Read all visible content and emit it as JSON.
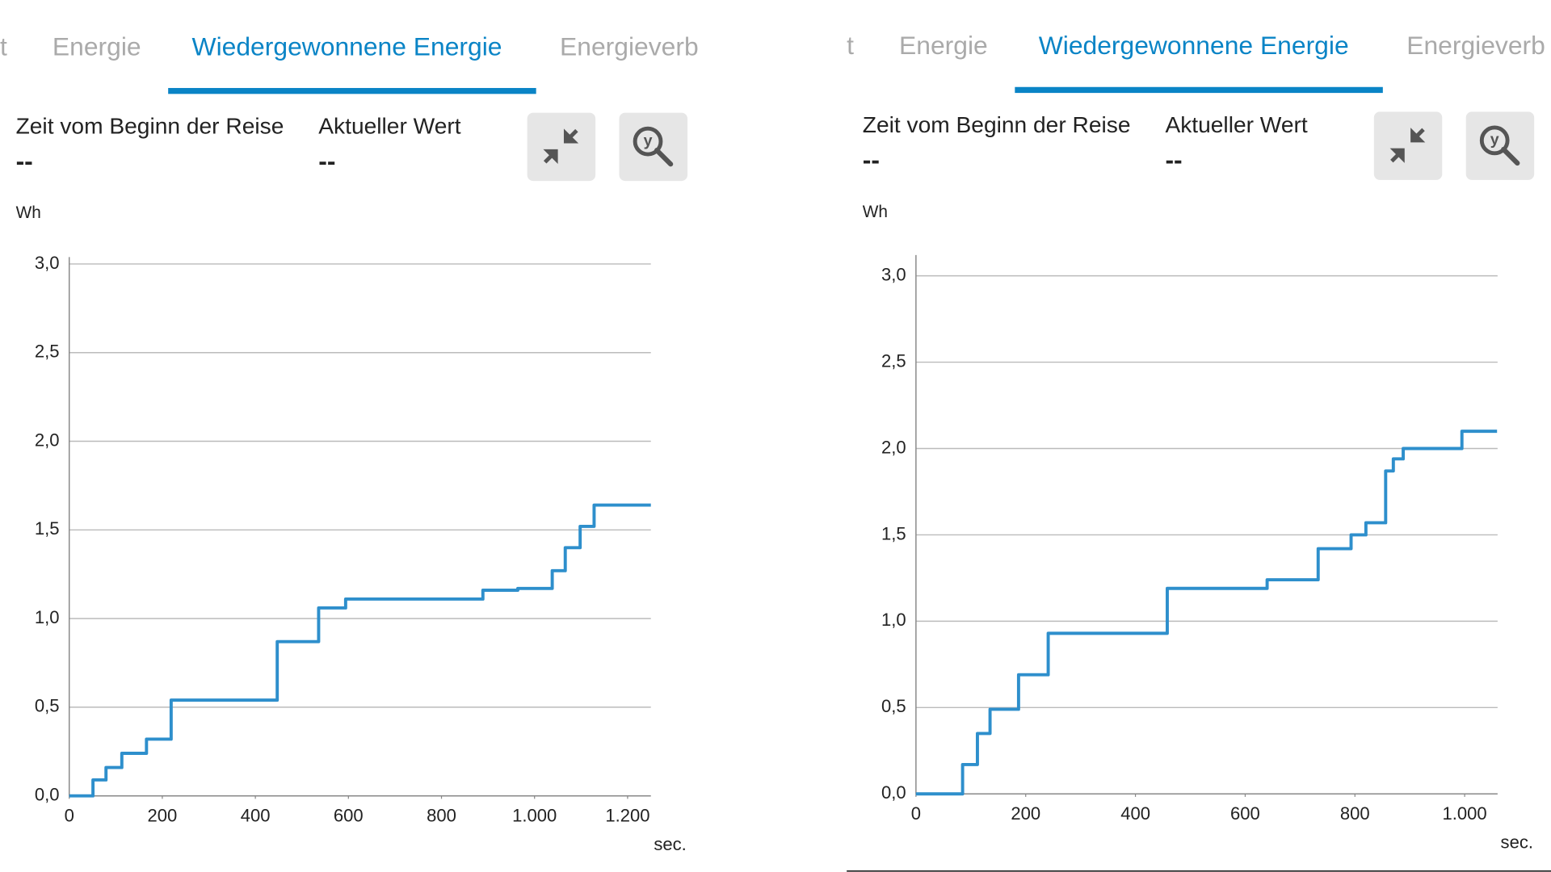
{
  "panels": [
    {
      "tabs": [
        "t",
        "Energie",
        "Wiedergewonnene Energie",
        "Energieverb"
      ],
      "time_label": "Zeit vom Beginn der Reise",
      "time_value": "--",
      "current_label": "Aktueller Wert",
      "current_value": "--",
      "zoom_icon": "y"
    },
    {
      "tabs": [
        "t",
        "Energie",
        "Wiedergewonnene Energie",
        "Energieverb"
      ],
      "time_label": "Zeit vom Beginn der Reise",
      "time_value": "--",
      "current_label": "Aktueller Wert",
      "current_value": "--",
      "zoom_icon": "y"
    }
  ],
  "chart_data": [
    {
      "type": "line",
      "y_label": "Wh",
      "x_label": "sec.",
      "color": "#2e8fcc",
      "grid": true,
      "x": [
        0,
        51,
        51,
        79,
        79,
        113,
        113,
        166,
        166,
        219,
        219,
        447,
        447,
        536,
        536,
        594,
        594,
        889,
        889,
        964,
        964,
        1038,
        1038,
        1066,
        1066,
        1098,
        1098,
        1128,
        1128,
        1250
      ],
      "values": [
        0,
        0,
        0.09,
        0.09,
        0.16,
        0.16,
        0.24,
        0.24,
        0.32,
        0.32,
        0.54,
        0.54,
        0.87,
        0.87,
        1.06,
        1.06,
        1.11,
        1.11,
        1.16,
        1.16,
        1.17,
        1.17,
        1.27,
        1.27,
        1.4,
        1.4,
        1.52,
        1.52,
        1.64,
        1.64
      ],
      "xlim": [
        0,
        1250
      ],
      "ylim": [
        0,
        3
      ],
      "xticks": [
        0,
        200,
        400,
        600,
        800,
        {
          "value": 1000,
          "label": "1.000"
        },
        {
          "value": 1200,
          "label": "1.200"
        }
      ],
      "yticks": [
        {
          "value": 0,
          "label": "0,0"
        },
        {
          "value": 0.5,
          "label": "0,5"
        },
        {
          "value": 1,
          "label": "1,0"
        },
        {
          "value": 1.5,
          "label": "1,5"
        },
        {
          "value": 2,
          "label": "2,0"
        },
        {
          "value": 2.5,
          "label": "2,5"
        },
        {
          "value": 3,
          "label": "3,0"
        }
      ]
    },
    {
      "type": "line",
      "y_label": "Wh",
      "x_label": "sec.",
      "color": "#2e8fcc",
      "grid": true,
      "x": [
        0,
        85,
        85,
        112,
        112,
        135,
        135,
        187,
        187,
        241,
        241,
        458,
        458,
        640,
        640,
        733,
        733,
        793,
        793,
        820,
        820,
        856,
        856,
        870,
        870,
        888,
        888,
        995,
        995,
        1059
      ],
      "values": [
        0,
        0,
        0.17,
        0.17,
        0.35,
        0.35,
        0.49,
        0.49,
        0.69,
        0.69,
        0.93,
        0.93,
        1.19,
        1.19,
        1.24,
        1.24,
        1.42,
        1.42,
        1.5,
        1.5,
        1.57,
        1.57,
        1.87,
        1.87,
        1.94,
        1.94,
        2.0,
        2.0,
        2.1,
        2.1
      ],
      "xlim": [
        0,
        1060
      ],
      "ylim": [
        0,
        3.1
      ],
      "xticks": [
        0,
        200,
        400,
        600,
        800,
        {
          "value": 1000,
          "label": "1.000"
        }
      ],
      "yticks": [
        {
          "value": 0,
          "label": "0,0"
        },
        {
          "value": 0.5,
          "label": "0,5"
        },
        {
          "value": 1,
          "label": "1,0"
        },
        {
          "value": 1.5,
          "label": "1,5"
        },
        {
          "value": 2,
          "label": "2,0"
        },
        {
          "value": 2.5,
          "label": "2,5"
        },
        {
          "value": 3,
          "label": "3,0"
        }
      ]
    }
  ]
}
